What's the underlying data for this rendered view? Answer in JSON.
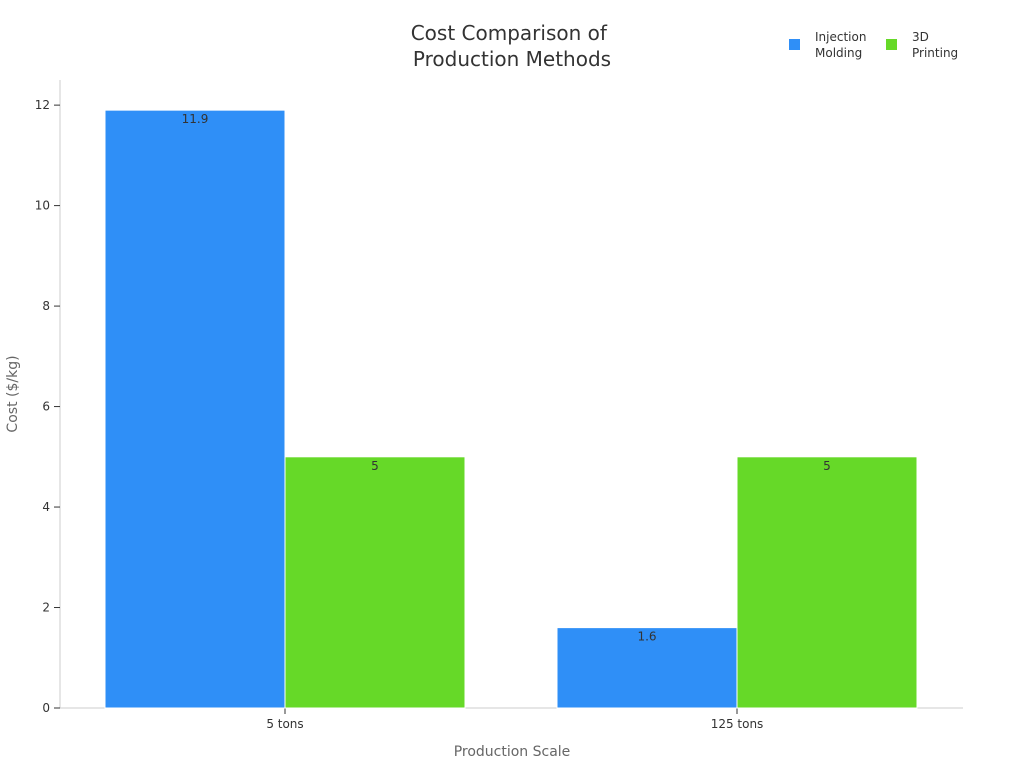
{
  "chart_data": {
    "type": "bar",
    "title": "Cost Comparison of Production Methods",
    "title_lines": [
      "Cost Comparison of",
      "Production Methods"
    ],
    "xlabel": "Production Scale",
    "ylabel": "Cost ($/kg)",
    "categories": [
      "5 tons",
      "125 tons"
    ],
    "series": [
      {
        "name": "Injection Molding",
        "legend_lines": [
          "Injection",
          "Molding"
        ],
        "color": "#2f8ff7",
        "values": [
          11.9,
          1.6
        ],
        "labels": [
          "11.9",
          "1.6"
        ]
      },
      {
        "name": "3D Printing",
        "legend_lines": [
          "3D",
          "Printing"
        ],
        "color": "#66d928",
        "values": [
          5,
          5
        ],
        "labels": [
          "5",
          "5"
        ]
      }
    ],
    "ylim": [
      0,
      12.5
    ],
    "yticks": [
      0,
      2,
      4,
      6,
      8,
      10,
      12
    ],
    "ytick_labels": [
      "0",
      "2",
      "4",
      "6",
      "8",
      "10",
      "12"
    ],
    "grid": false,
    "legend_position": "top-right"
  }
}
